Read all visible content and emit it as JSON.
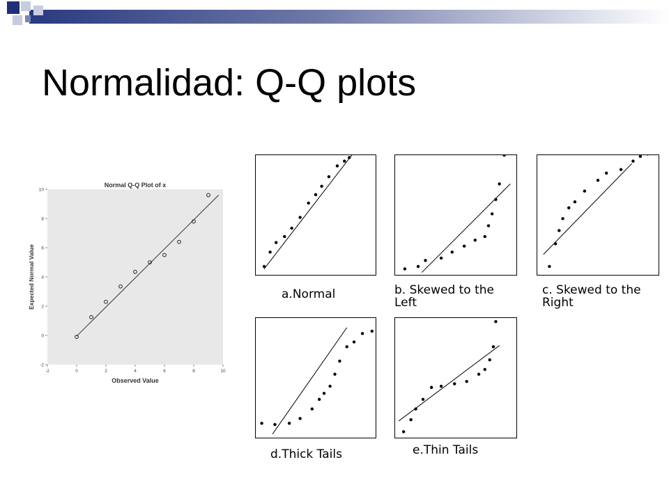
{
  "slide": {
    "title": "Normalidad: Q-Q plots"
  },
  "colors": {
    "band_dark": "#2a3a80",
    "band_light": "#c8cce0",
    "plot_bg": "#e8e8e8",
    "marker": "#000000"
  },
  "chart_data": [
    {
      "type": "scatter",
      "title": "Normal Q-Q Plot of x",
      "xlabel": "Observed Value",
      "ylabel": "Expected Normal Value",
      "xlim": [
        -2,
        10
      ],
      "ylim": [
        -2,
        10
      ],
      "xticks": [
        -2,
        0,
        2,
        4,
        6,
        8,
        10
      ],
      "yticks": [
        -2,
        0,
        2,
        4,
        6,
        8,
        10
      ],
      "x": [
        0,
        1,
        2,
        3,
        4,
        5,
        6,
        7,
        8,
        9
      ],
      "y": [
        -0.1,
        1.25,
        2.3,
        3.35,
        4.35,
        5.0,
        5.5,
        6.4,
        7.8,
        9.6
      ],
      "reference_line": [
        [
          0,
          -0.05
        ],
        [
          9.7,
          9.6
        ]
      ]
    },
    {
      "type": "scatter",
      "title": "a.Normal",
      "x": [
        0.07,
        0.12,
        0.17,
        0.24,
        0.3,
        0.37,
        0.44,
        0.5,
        0.55,
        0.61,
        0.68,
        0.74,
        0.78,
        0.85,
        0.92
      ],
      "y": [
        0.07,
        0.19,
        0.27,
        0.32,
        0.39,
        0.48,
        0.6,
        0.67,
        0.74,
        0.82,
        0.91,
        0.95,
        0.98,
        1.08,
        1.13
      ],
      "reference_line": [
        [
          0.07,
          0.05
        ],
        [
          0.94,
          1.18
        ]
      ]
    },
    {
      "type": "scatter",
      "title": "b. Skewed to the Left",
      "x": [
        0.08,
        0.19,
        0.25,
        0.38,
        0.47,
        0.57,
        0.66,
        0.74,
        0.77,
        0.8,
        0.83,
        0.86,
        0.9
      ],
      "y": [
        0.05,
        0.07,
        0.12,
        0.14,
        0.19,
        0.24,
        0.29,
        0.32,
        0.41,
        0.51,
        0.63,
        0.76,
        1.0
      ],
      "reference_line": [
        [
          0.22,
          0.02
        ],
        [
          0.95,
          0.76
        ]
      ]
    },
    {
      "type": "scatter",
      "title": "c. Skewed to the Right",
      "x": [
        0.1,
        0.15,
        0.18,
        0.21,
        0.26,
        0.31,
        0.39,
        0.5,
        0.57,
        0.69,
        0.79,
        0.85,
        0.91
      ],
      "y": [
        0.07,
        0.26,
        0.37,
        0.47,
        0.56,
        0.61,
        0.7,
        0.79,
        0.85,
        0.88,
        0.95,
        0.99,
        1.01
      ],
      "reference_line": [
        [
          0.05,
          0.17
        ],
        [
          0.78,
          0.93
        ]
      ]
    },
    {
      "type": "scatter",
      "title": "d.Thick Tails",
      "x": [
        0.05,
        0.16,
        0.28,
        0.37,
        0.47,
        0.53,
        0.57,
        0.62,
        0.66,
        0.7,
        0.76,
        0.82,
        0.89,
        0.97
      ],
      "y": [
        0.12,
        0.11,
        0.12,
        0.16,
        0.24,
        0.32,
        0.37,
        0.43,
        0.53,
        0.64,
        0.76,
        0.8,
        0.87,
        0.89
      ],
      "reference_line": [
        [
          0.14,
          0.03
        ],
        [
          0.76,
          0.92
        ]
      ]
    },
    {
      "type": "scatter",
      "title": "e.Thin Tails",
      "x": [
        0.07,
        0.13,
        0.17,
        0.23,
        0.3,
        0.38,
        0.49,
        0.59,
        0.69,
        0.74,
        0.78,
        0.81,
        0.83
      ],
      "y": [
        0.05,
        0.15,
        0.24,
        0.32,
        0.42,
        0.43,
        0.45,
        0.47,
        0.53,
        0.57,
        0.65,
        0.76,
        0.97
      ],
      "reference_line": [
        [
          0.03,
          0.14
        ],
        [
          0.86,
          0.77
        ]
      ]
    }
  ]
}
